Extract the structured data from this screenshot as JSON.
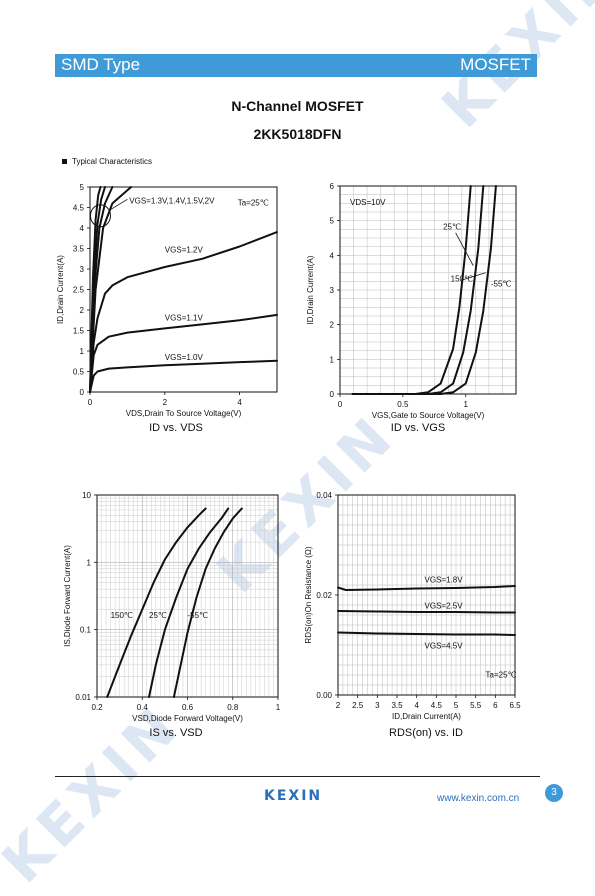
{
  "header": {
    "left": "SMD Type",
    "right": "MOSFET"
  },
  "title": "N-Channel MOSFET",
  "part_number": "2KK5018DFN",
  "section_label": "Typical  Characteristics",
  "footer": {
    "logo": "KEXIN",
    "url": "www.kexin.com.cn",
    "page": "3"
  },
  "watermark": "KEXIN",
  "chart_data": [
    {
      "type": "line",
      "caption": "ID vs. VDS",
      "xlabel": "VDS,Drain To Source Voltage(V)",
      "ylabel": "ID,Drain Current(A)",
      "xlim": [
        0,
        5
      ],
      "ylim": [
        0,
        5
      ],
      "xticks": [
        "0",
        "2",
        "4"
      ],
      "yticks": [
        "0",
        "0.5",
        "1",
        "1.5",
        "2",
        "2.5",
        "3",
        "3.5",
        "4",
        "4.5",
        "5"
      ],
      "grid": false,
      "annotations": [
        "VGS=1.3V,1.4V,1.5V,2V",
        "Ta=25℃"
      ],
      "series": [
        {
          "name": "VGS=1.0V",
          "x": [
            0,
            0.1,
            0.2,
            0.5,
            1,
            2,
            3,
            4,
            5
          ],
          "y": [
            0,
            0.4,
            0.5,
            0.57,
            0.6,
            0.65,
            0.69,
            0.73,
            0.76
          ]
        },
        {
          "name": "VGS=1.1V",
          "x": [
            0,
            0.1,
            0.2,
            0.5,
            1,
            2,
            3,
            4,
            5
          ],
          "y": [
            0,
            0.9,
            1.15,
            1.35,
            1.45,
            1.55,
            1.65,
            1.75,
            1.88
          ]
        },
        {
          "name": "VGS=1.2V",
          "x": [
            0,
            0.1,
            0.2,
            0.4,
            0.6,
            1,
            2,
            3,
            4,
            5
          ],
          "y": [
            0,
            1.2,
            1.8,
            2.4,
            2.6,
            2.8,
            3.05,
            3.25,
            3.55,
            3.9
          ]
        },
        {
          "name": "",
          "x": [
            0,
            0.15,
            0.35,
            0.6,
            1.1
          ],
          "y": [
            0,
            2.5,
            4.0,
            4.6,
            5.0
          ]
        },
        {
          "name": "",
          "x": [
            0,
            0.12,
            0.25,
            0.4,
            0.6
          ],
          "y": [
            0,
            2.6,
            4.0,
            4.6,
            5.0
          ]
        },
        {
          "name": "",
          "x": [
            0,
            0.1,
            0.2,
            0.3,
            0.4
          ],
          "y": [
            0,
            2.7,
            4.1,
            4.7,
            5.0
          ]
        },
        {
          "name": "",
          "x": [
            0,
            0.08,
            0.15,
            0.22,
            0.28
          ],
          "y": [
            0,
            2.8,
            4.2,
            4.8,
            5.0
          ]
        }
      ]
    },
    {
      "type": "line",
      "caption": "ID vs. VGS",
      "xlabel": "VGS,Gate to Source Voltage(V)",
      "ylabel": "ID,Drain Current(A)",
      "xlim": [
        0,
        1.4
      ],
      "ylim": [
        0,
        6
      ],
      "xticks": [
        "0",
        "0.5",
        "1"
      ],
      "yticks": [
        "0",
        "1",
        "2",
        "3",
        "4",
        "5",
        "6"
      ],
      "grid": true,
      "annotations": [
        "VDS=10V"
      ],
      "series": [
        {
          "name": "150℃",
          "x": [
            0.1,
            0.6,
            0.7,
            0.8,
            0.9,
            0.95,
            1.0,
            1.04
          ],
          "y": [
            0,
            0,
            0.05,
            0.3,
            1.3,
            2.5,
            4.2,
            6.0
          ]
        },
        {
          "name": "25℃",
          "x": [
            0.1,
            0.7,
            0.8,
            0.9,
            0.98,
            1.04,
            1.1,
            1.14
          ],
          "y": [
            0,
            0,
            0.05,
            0.3,
            1.2,
            2.4,
            4.2,
            6.0
          ]
        },
        {
          "name": "-55℃",
          "x": [
            0.1,
            0.8,
            0.9,
            1.0,
            1.08,
            1.14,
            1.2,
            1.24
          ],
          "y": [
            0,
            0,
            0.05,
            0.3,
            1.2,
            2.4,
            4.2,
            6.0
          ]
        }
      ]
    },
    {
      "type": "line",
      "caption": "IS vs. VSD",
      "xlabel": "VSD,Diode Forward Voltage(V)",
      "ylabel": "IS,Diode Forward Current(A)",
      "xlim": [
        0.2,
        1
      ],
      "ylim": [
        0.01,
        10
      ],
      "yscale": "log",
      "xticks": [
        "0.2",
        "0.4",
        "0.6",
        "0.8",
        "1"
      ],
      "yticks": [
        "0.01",
        "0.1",
        "1",
        "10"
      ],
      "grid": true,
      "series": [
        {
          "name": "150℃",
          "x": [
            0.245,
            0.3,
            0.35,
            0.4,
            0.45,
            0.5,
            0.55,
            0.6,
            0.65,
            0.68
          ],
          "y": [
            0.01,
            0.03,
            0.08,
            0.2,
            0.5,
            1.1,
            2.0,
            3.3,
            5.0,
            6.3
          ]
        },
        {
          "name": "25℃",
          "x": [
            0.43,
            0.46,
            0.5,
            0.55,
            0.6,
            0.65,
            0.7,
            0.75,
            0.78
          ],
          "y": [
            0.01,
            0.03,
            0.1,
            0.3,
            0.8,
            1.6,
            2.8,
            4.5,
            6.3
          ]
        },
        {
          "name": "-55℃",
          "x": [
            0.54,
            0.57,
            0.6,
            0.64,
            0.68,
            0.72,
            0.76,
            0.8,
            0.84
          ],
          "y": [
            0.01,
            0.03,
            0.09,
            0.3,
            0.8,
            1.6,
            2.8,
            4.5,
            6.3
          ]
        }
      ]
    },
    {
      "type": "line",
      "caption": "RDS(on) vs. ID",
      "xlabel": "ID,Drain Current(A)",
      "ylabel": "RDS(on)On Resistance (Ω)",
      "xlim": [
        2,
        6.5
      ],
      "ylim": [
        0,
        0.04
      ],
      "xticks": [
        "2",
        "2.5",
        "3",
        "3.5",
        "4",
        "4.5",
        "5",
        "5.5",
        "6",
        "6.5"
      ],
      "yticks": [
        "0.00",
        "0.02",
        "0.04"
      ],
      "grid": true,
      "annotations": [
        "Ta=25℃"
      ],
      "series": [
        {
          "name": "VGS=1.8V",
          "x": [
            2,
            2.2,
            3,
            4,
            5,
            6,
            6.5
          ],
          "y": [
            0.0215,
            0.021,
            0.0211,
            0.0213,
            0.0214,
            0.0216,
            0.0218
          ]
        },
        {
          "name": "VGS=2.5V",
          "x": [
            2,
            3,
            4,
            5,
            6,
            6.5
          ],
          "y": [
            0.0168,
            0.0167,
            0.0166,
            0.0166,
            0.0165,
            0.0165
          ]
        },
        {
          "name": "VGS=4.5V",
          "x": [
            2,
            3,
            4,
            5,
            6,
            6.5
          ],
          "y": [
            0.0125,
            0.0123,
            0.0122,
            0.0121,
            0.0121,
            0.012
          ]
        }
      ]
    }
  ]
}
